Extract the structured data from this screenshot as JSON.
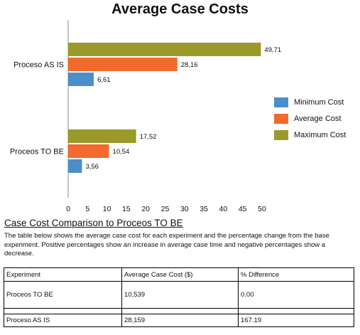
{
  "chart_data": {
    "type": "bar",
    "orientation": "horizontal",
    "title": "Average Case Costs",
    "categories": [
      "Proceso AS IS",
      "Proceos TO BE"
    ],
    "series": [
      {
        "name": "Minimum Cost",
        "color": "#4a8fc9",
        "values": [
          6.61,
          3.56
        ],
        "labels": [
          "6,61",
          "3,56"
        ]
      },
      {
        "name": "Average Cost",
        "color": "#f26a2e",
        "values": [
          28.16,
          10.54
        ],
        "labels": [
          "28,16",
          "10,54"
        ]
      },
      {
        "name": "Maximum Cost",
        "color": "#9a9a2a",
        "values": [
          49.71,
          17.52
        ],
        "labels": [
          "49,71",
          "17,52"
        ]
      }
    ],
    "xlim": [
      0,
      50
    ],
    "xticks": [
      "0",
      "5",
      "10",
      "15",
      "20",
      "25",
      "30",
      "35",
      "40",
      "45",
      "50"
    ],
    "grid": false,
    "legend_position": "right"
  },
  "section": {
    "heading": "Case Cost Comparison to Proceos TO BE",
    "description": "The table below shows the average case cost for each experiment and the percentage change from the base experiment. Positive percentages show an increase in average case time and negative percentages show a decrease."
  },
  "table": {
    "headers": [
      "Experiment",
      "Average Case Cost ($)",
      "% Difference"
    ],
    "rows": [
      [
        "Proceos TO BE",
        "10,539",
        "0.00"
      ],
      [
        "Proceso AS IS",
        "28,159",
        "167.19"
      ]
    ]
  }
}
